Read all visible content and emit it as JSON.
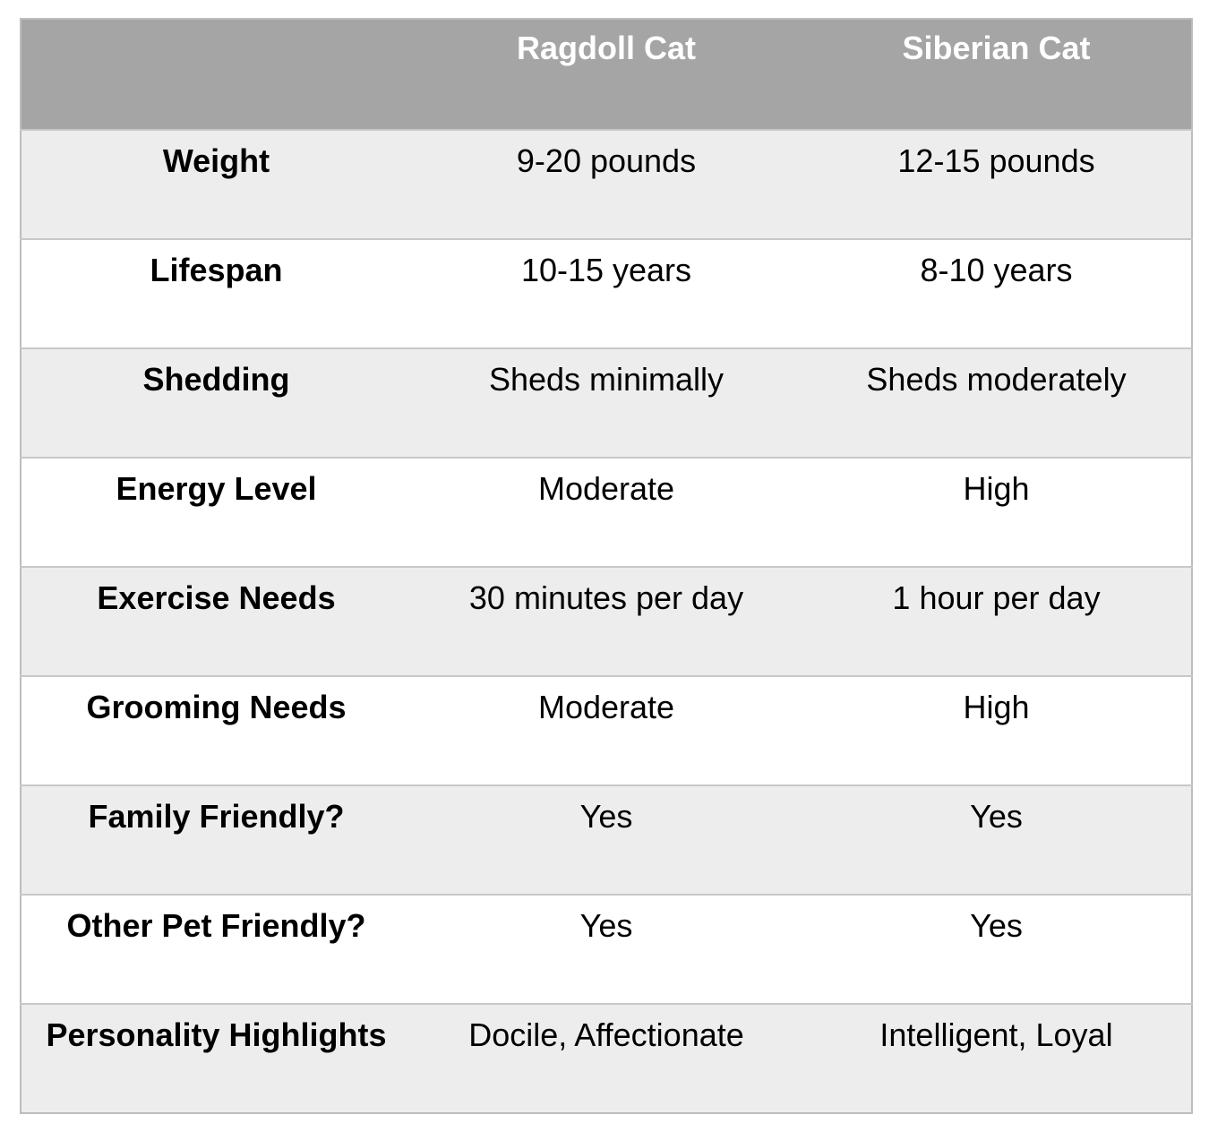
{
  "table": {
    "headers": [
      "",
      "Ragdoll Cat",
      "Siberian Cat"
    ],
    "rows": [
      {
        "label": "Weight",
        "ragdoll": "9-20 pounds",
        "siberian": "12-15 pounds"
      },
      {
        "label": "Lifespan",
        "ragdoll": "10-15 years",
        "siberian": "8-10 years"
      },
      {
        "label": "Shedding",
        "ragdoll": "Sheds minimally",
        "siberian": "Sheds moderately"
      },
      {
        "label": "Energy Level",
        "ragdoll": "Moderate",
        "siberian": "High"
      },
      {
        "label": "Exercise Needs",
        "ragdoll": "30 minutes per day",
        "siberian": "1 hour per day"
      },
      {
        "label": "Grooming Needs",
        "ragdoll": "Moderate",
        "siberian": "High"
      },
      {
        "label": "Family Friendly?",
        "ragdoll": "Yes",
        "siberian": "Yes"
      },
      {
        "label": "Other Pet Friendly?",
        "ragdoll": "Yes",
        "siberian": "Yes"
      },
      {
        "label": "Personality Highlights",
        "ragdoll": "Docile, Affectionate",
        "siberian": "Intelligent, Loyal"
      }
    ]
  },
  "colors": {
    "header_background": "#a5a5a5",
    "header_text": "#ffffff",
    "band_shaded": "#ededed",
    "band_plain": "#ffffff",
    "border": "#c8c8c8"
  }
}
